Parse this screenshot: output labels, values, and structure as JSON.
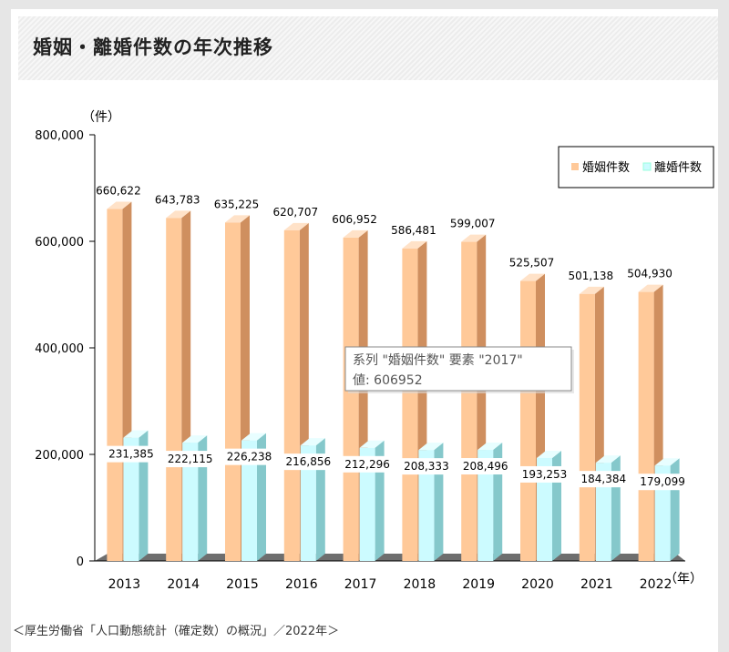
{
  "header": {
    "title": "婚姻・離婚件数の年次推移"
  },
  "source": "＜厚生労働省「人口動態統計（確定数）の概況」／2022年＞",
  "colors": {
    "marriage_front": "#ffc999",
    "marriage_side": "#cf8f5f",
    "marriage_top": "#ffe2c8",
    "divorce_front": "#ccfbff",
    "divorce_side": "#85c8cb",
    "divorce_top": "#e8feff",
    "floor": "#808080"
  },
  "chart_data": {
    "type": "bar",
    "categories": [
      "2013",
      "2014",
      "2015",
      "2016",
      "2017",
      "2018",
      "2019",
      "2020",
      "2021",
      "2022"
    ],
    "series": [
      {
        "name": "婚姻件数",
        "values": [
          660622,
          643783,
          635225,
          620707,
          606952,
          586481,
          599007,
          525507,
          501138,
          504930
        ],
        "labels": [
          "660,622",
          "643,783",
          "635,225",
          "620,707",
          "606,952",
          "586,481",
          "599,007",
          "525,507",
          "501,138",
          "504,930"
        ]
      },
      {
        "name": "離婚件数",
        "values": [
          231385,
          222115,
          226238,
          216856,
          212296,
          208333,
          208496,
          193253,
          184384,
          179099
        ],
        "labels": [
          "231,385",
          "222,115",
          "226,238",
          "216,856",
          "212,296",
          "208,333",
          "208,496",
          "193,253",
          "184,384",
          "179,099"
        ]
      }
    ],
    "y_unit_label": "（件）",
    "x_unit_label": "（年）",
    "yticks": [
      "0",
      "200,000",
      "400,000",
      "600,000",
      "800,000"
    ],
    "ylim": [
      0,
      800000
    ],
    "legend_position": "top-right",
    "tooltip": {
      "line1": "系列 \"婚姻件数\" 要素 \"2017\"",
      "line2": "値: 606952"
    }
  }
}
